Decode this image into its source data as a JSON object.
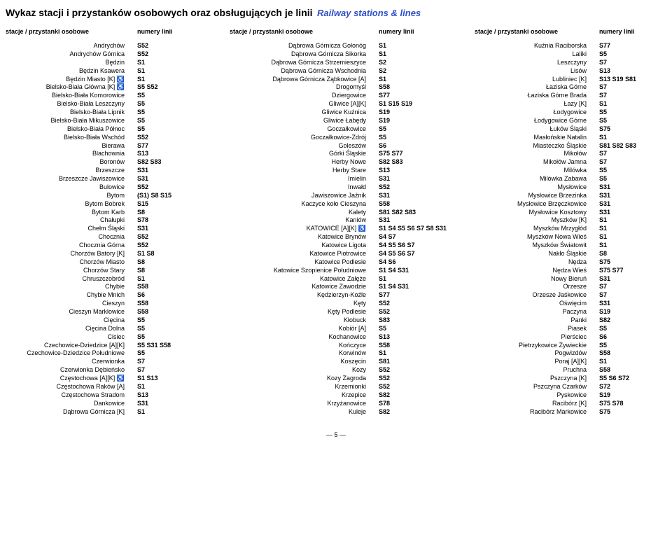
{
  "title_main": "Wykaz stacji i przystanków osobowych oraz obsługujących je linii",
  "title_sub": "Railway stations & lines",
  "header_station": "stacje / przystanki osobowe",
  "header_lines": "numery linii",
  "page_number": "— 5 —",
  "columns": [
    {
      "rows": [
        {
          "station": "Andrychów",
          "lines": "S52"
        },
        {
          "station": "Andrychów Górnica",
          "lines": "S52"
        },
        {
          "station": "Będzin",
          "lines": "S1"
        },
        {
          "station": "Będzin Ksawera",
          "lines": "S1"
        },
        {
          "station": "Będzin Miasto [K] ♿",
          "lines": "S1"
        },
        {
          "station": "Bielsko-Biała Główna [K] ♿",
          "lines": "S5  S52"
        },
        {
          "station": "Bielsko-Biała Komorowice",
          "lines": "S5"
        },
        {
          "station": "Bielsko-Biała Leszczyny",
          "lines": "S5"
        },
        {
          "station": "Bielsko-Biała Lipnik",
          "lines": "S5"
        },
        {
          "station": "Bielsko-Biała Mikuszowice",
          "lines": "S5"
        },
        {
          "station": "Bielsko-Biała Północ",
          "lines": "S5"
        },
        {
          "station": "Bielsko-Biała Wschód",
          "lines": "S52"
        },
        {
          "station": "Bierawa",
          "lines": "S77"
        },
        {
          "station": "Blachownia",
          "lines": "S13"
        },
        {
          "station": "Boronów",
          "lines": "S82  S83"
        },
        {
          "station": "Brzeszcze",
          "lines": "S31"
        },
        {
          "station": "Brzeszcze Jawiszowice",
          "lines": "S31"
        },
        {
          "station": "Bulowice",
          "lines": "S52"
        },
        {
          "station": "Bytom",
          "lines": "(S1)  S8  S15"
        },
        {
          "station": "Bytom Bobrek",
          "lines": "S15"
        },
        {
          "station": "Bytom Karb",
          "lines": "S8"
        },
        {
          "station": "Chałupki",
          "lines": "S78"
        },
        {
          "station": "Chełm Śląski",
          "lines": "S31"
        },
        {
          "station": "Chocznia",
          "lines": "S52"
        },
        {
          "station": "Chocznia Górna",
          "lines": "S52"
        },
        {
          "station": "Chorzów Batory [K]",
          "lines": "S1  S8"
        },
        {
          "station": "Chorzów Miasto",
          "lines": "S8"
        },
        {
          "station": "Chorzów Stary",
          "lines": "S8"
        },
        {
          "station": "Chruszczobród",
          "lines": "S1"
        },
        {
          "station": "Chybie",
          "lines": "S58"
        },
        {
          "station": "Chybie Mnich",
          "lines": "S6"
        },
        {
          "station": "Cieszyn",
          "lines": "S58"
        },
        {
          "station": "Cieszyn Marklowice",
          "lines": "S58"
        },
        {
          "station": "Cięcina",
          "lines": "S5"
        },
        {
          "station": "Cięcina Dolna",
          "lines": "S5"
        },
        {
          "station": "Cisiec",
          "lines": "S5"
        },
        {
          "station": "Czechowice-Dziedzice [A][K]",
          "lines": "S5  S31  S58"
        },
        {
          "station": "Czechowice-Dziedzice Południowe",
          "lines": "S5"
        },
        {
          "station": "Czerwionka",
          "lines": "S7"
        },
        {
          "station": "Czerwionka Dębieńsko",
          "lines": "S7"
        },
        {
          "station": "Częstochowa [A][K] ♿",
          "lines": "S1  S13"
        },
        {
          "station": "Częstochowa Raków [A]",
          "lines": "S1"
        },
        {
          "station": "Częstochowa Stradom",
          "lines": "S13"
        },
        {
          "station": "Dankowice",
          "lines": "S31"
        },
        {
          "station": "Dąbrowa Górnicza [K]",
          "lines": "S1"
        }
      ]
    },
    {
      "rows": [
        {
          "station": "Dąbrowa Górnicza Gołonóg",
          "lines": "S1"
        },
        {
          "station": "Dąbrowa Górnicza Sikorka",
          "lines": "S1"
        },
        {
          "station": "Dąbrowa Górnicza Strzemieszyce",
          "lines": "S2"
        },
        {
          "station": "Dąbrowa Górnicza Wschodnia",
          "lines": "S2"
        },
        {
          "station": "Dąbrowa Górnicza Ząbkowice [A]",
          "lines": "S1"
        },
        {
          "station": "Drogomyśl",
          "lines": "S58"
        },
        {
          "station": "Dziergowice",
          "lines": "S77"
        },
        {
          "station": "Gliwice [A][K]",
          "lines": "S1  S15  S19"
        },
        {
          "station": "Gliwice Kuźnica",
          "lines": "S19"
        },
        {
          "station": "Gliwice Łabędy",
          "lines": "S19"
        },
        {
          "station": "Goczałkowice",
          "lines": "S5"
        },
        {
          "station": "Goczałkowice-Zdrój",
          "lines": "S5"
        },
        {
          "station": "Goleszów",
          "lines": "S6"
        },
        {
          "station": "Górki Śląskie",
          "lines": "S75  S77"
        },
        {
          "station": "Herby Nowe",
          "lines": "S82  S83"
        },
        {
          "station": "Herby Stare",
          "lines": "S13"
        },
        {
          "station": "Imielin",
          "lines": "S31"
        },
        {
          "station": "Inwałd",
          "lines": "S52"
        },
        {
          "station": "Jawiszowice Jaźnik",
          "lines": "S31"
        },
        {
          "station": "Kaczyce koło Cieszyna",
          "lines": "S58"
        },
        {
          "station": "Kalety",
          "lines": "S81  S82  S83"
        },
        {
          "station": "Kaniów",
          "lines": "S31"
        },
        {
          "station": "KATOWICE [A][K] ♿",
          "lines": "S1  S4  S5  S6  S7  S8  S31"
        },
        {
          "station": "Katowice Brynów",
          "lines": "S4  S7"
        },
        {
          "station": "Katowice Ligota",
          "lines": "S4  S5  S6  S7"
        },
        {
          "station": "Katowice Piotrowice",
          "lines": "S4  S5  S6  S7"
        },
        {
          "station": "Katowice Podlesie",
          "lines": "S4  S6"
        },
        {
          "station": "Katowice Szopienice Południowe",
          "lines": "S1  S4  S31"
        },
        {
          "station": "Katowice Załęże",
          "lines": "S1"
        },
        {
          "station": "Katowice Zawodzie",
          "lines": "S1  S4  S31"
        },
        {
          "station": "Kędzierzyn-Koźle",
          "lines": "S77"
        },
        {
          "station": "Kęty",
          "lines": "S52"
        },
        {
          "station": "Kęty Podlesie",
          "lines": "S52"
        },
        {
          "station": "Kłobuck",
          "lines": "S83"
        },
        {
          "station": "Kobiór [A]",
          "lines": "S5"
        },
        {
          "station": "Kochanowice",
          "lines": "S13"
        },
        {
          "station": "Kończyce",
          "lines": "S58"
        },
        {
          "station": "Korwinów",
          "lines": "S1"
        },
        {
          "station": "Koszęcin",
          "lines": "S81"
        },
        {
          "station": "Kozy",
          "lines": "S52"
        },
        {
          "station": "Kozy Zagroda",
          "lines": "S52"
        },
        {
          "station": "Krzemionki",
          "lines": "S52"
        },
        {
          "station": "Krzepice",
          "lines": "S82"
        },
        {
          "station": "Krzyżanowice",
          "lines": "S78"
        },
        {
          "station": "Kuleje",
          "lines": "S82"
        }
      ]
    },
    {
      "rows": [
        {
          "station": "Kuźnia Raciborska",
          "lines": "S77"
        },
        {
          "station": "Laliki",
          "lines": "S5"
        },
        {
          "station": "Leszczyny",
          "lines": "S7"
        },
        {
          "station": "Lisów",
          "lines": "S13"
        },
        {
          "station": "Lubliniec [K]",
          "lines": "S13  S19  S81"
        },
        {
          "station": "Łaziska Górne",
          "lines": "S7"
        },
        {
          "station": "Łaziska Górne Brada",
          "lines": "S7"
        },
        {
          "station": "Łazy [K]",
          "lines": "S1"
        },
        {
          "station": "Łodygowice",
          "lines": "S5"
        },
        {
          "station": "Łodygowice Górne",
          "lines": "S5"
        },
        {
          "station": "Łuków Śląski",
          "lines": "S75"
        },
        {
          "station": "Masłońskie Natalin",
          "lines": "S1"
        },
        {
          "station": "Miasteczko Śląskie",
          "lines": "S81  S82  S83"
        },
        {
          "station": "Mikołów",
          "lines": "S7"
        },
        {
          "station": "Mikołów Jamna",
          "lines": "S7"
        },
        {
          "station": "Milówka",
          "lines": "S5"
        },
        {
          "station": "Milówka Zabawa",
          "lines": "S5"
        },
        {
          "station": "Mysłowice",
          "lines": "S31"
        },
        {
          "station": "Mysłowice Brzezinka",
          "lines": "S31"
        },
        {
          "station": "Mysłowice Brzęczkowice",
          "lines": "S31"
        },
        {
          "station": "Mysłowice Kosztowy",
          "lines": "S31"
        },
        {
          "station": "Myszków [K]",
          "lines": "S1"
        },
        {
          "station": "Myszków Mrzygłód",
          "lines": "S1"
        },
        {
          "station": "Myszków Nowa Wieś",
          "lines": "S1"
        },
        {
          "station": "Myszków Światowit",
          "lines": "S1"
        },
        {
          "station": "Nakło Śląskie",
          "lines": "S8"
        },
        {
          "station": "Nędza",
          "lines": "S75"
        },
        {
          "station": "Nędza Wieś",
          "lines": "S75  S77"
        },
        {
          "station": "Nowy Bieruń",
          "lines": "S31"
        },
        {
          "station": "Orzesze",
          "lines": "S7"
        },
        {
          "station": "Orzesze Jaśkowice",
          "lines": "S7"
        },
        {
          "station": "Oświęcim",
          "lines": "S31"
        },
        {
          "station": "Paczyna",
          "lines": "S19"
        },
        {
          "station": "Panki",
          "lines": "S82"
        },
        {
          "station": "Piasek",
          "lines": "S5"
        },
        {
          "station": "Pierściec",
          "lines": "S6"
        },
        {
          "station": "Pietrzykowice Żywieckie",
          "lines": "S5"
        },
        {
          "station": "Pogwizdów",
          "lines": "S58"
        },
        {
          "station": "Poraj [A][K]",
          "lines": "S1"
        },
        {
          "station": "Pruchna",
          "lines": "S58"
        },
        {
          "station": "Pszczyna [K]",
          "lines": "S5  S6  S72"
        },
        {
          "station": "Pszczyna Czarków",
          "lines": "S72"
        },
        {
          "station": "Pyskowice",
          "lines": "S19"
        },
        {
          "station": "Racibórz [K]",
          "lines": "S75  S78"
        },
        {
          "station": "Racibórz Markowice",
          "lines": "S75"
        }
      ]
    }
  ]
}
